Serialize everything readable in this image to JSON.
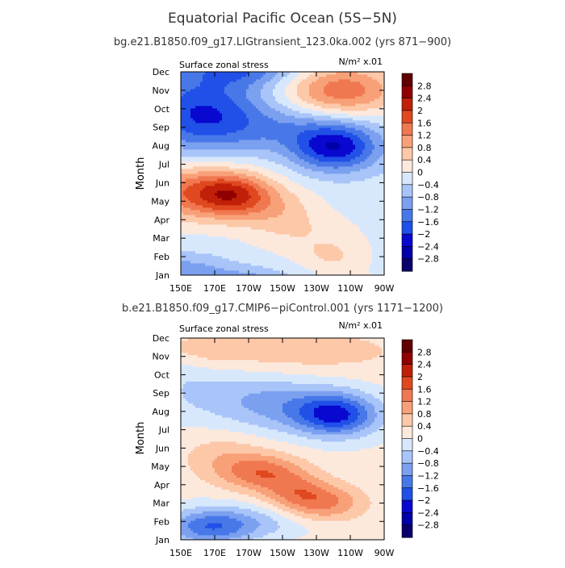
{
  "figure": {
    "title": "Equatorial Pacific Ocean (5S−5N)"
  },
  "chart_data": [
    {
      "type": "heatmap",
      "subtitle": "bg.e21.B1850.f09_g17.LIGtransient_123.0ka.002 (yrs 871−900)",
      "left_label": "Surface zonal stress",
      "units_label": "N/m² x.01",
      "ylabel": "Month",
      "xlabel": "",
      "x_ticks": [
        "150E",
        "170E",
        "170W",
        "150W",
        "130W",
        "110W",
        "90W"
      ],
      "y_ticks": [
        "Jan",
        "Feb",
        "Mar",
        "Apr",
        "May",
        "Jun",
        "Jul",
        "Aug",
        "Sep",
        "Oct",
        "Nov",
        "Dec"
      ],
      "xlim": [
        "150E",
        "90W"
      ],
      "levels": [
        -2.8,
        -2.4,
        -2,
        -1.6,
        -1.2,
        -0.8,
        -0.4,
        0,
        0.4,
        0.8,
        1.2,
        1.6,
        2,
        2.4,
        2.8
      ],
      "level_labels": [
        "2.8",
        "2.4",
        "2",
        "1.6",
        "1.2",
        "0.8",
        "0.4",
        "0",
        "−0.4",
        "−0.8",
        "−1.2",
        "−1.6",
        "−2",
        "−2.4",
        "−2.8"
      ],
      "features": [
        {
          "lon": 0.06,
          "month": 4.5,
          "amp": 1.6,
          "sx": 0.22,
          "sy": 1.1
        },
        {
          "lon": 0.26,
          "month": 4.35,
          "amp": 1.5,
          "sx": 0.13,
          "sy": 0.8
        },
        {
          "lon": 0.48,
          "month": 3.6,
          "amp": 0.6,
          "sx": 0.14,
          "sy": 0.9
        },
        {
          "lon": 0.62,
          "month": 2.2,
          "amp": 0.45,
          "sx": 0.2,
          "sy": 0.9
        },
        {
          "lon": 0.75,
          "month": 1.0,
          "amp": 0.5,
          "sx": 0.12,
          "sy": 0.6
        },
        {
          "lon": 0.79,
          "month": 10.0,
          "amp": 1.7,
          "sx": 0.2,
          "sy": 1.0
        },
        {
          "lon": 0.1,
          "month": 8.8,
          "amp": -1.8,
          "sx": 0.22,
          "sy": 1.5
        },
        {
          "lon": 0.55,
          "month": 8.0,
          "amp": -0.7,
          "sx": 0.25,
          "sy": 0.9
        },
        {
          "lon": 0.76,
          "month": 6.9,
          "amp": -2.0,
          "sx": 0.15,
          "sy": 0.9
        },
        {
          "lon": 0.3,
          "month": 11.2,
          "amp": -1.2,
          "sx": 0.2,
          "sy": 0.7
        },
        {
          "lon": 0.0,
          "month": 0.4,
          "amp": -0.6,
          "sx": 0.15,
          "sy": 0.6
        }
      ],
      "background": -0.2
    },
    {
      "type": "heatmap",
      "subtitle": "b.e21.B1850.f09_g17.CMIP6−piControl.001 (yrs 1171−1200)",
      "left_label": "Surface zonal stress",
      "units_label": "N/m² x.01",
      "ylabel": "Month",
      "xlabel": "",
      "x_ticks": [
        "150E",
        "170E",
        "170W",
        "150W",
        "130W",
        "110W",
        "90W"
      ],
      "y_ticks": [
        "Jan",
        "Feb",
        "Mar",
        "Apr",
        "May",
        "Jun",
        "Jul",
        "Aug",
        "Sep",
        "Oct",
        "Nov",
        "Dec"
      ],
      "xlim": [
        "150E",
        "90W"
      ],
      "levels": [
        -2.8,
        -2.4,
        -2,
        -1.6,
        -1.2,
        -0.8,
        -0.4,
        0,
        0.4,
        0.8,
        1.2,
        1.6,
        2,
        2.4,
        2.8
      ],
      "level_labels": [
        "2.8",
        "2.4",
        "2",
        "1.6",
        "1.2",
        "0.8",
        "0.4",
        "0",
        "−0.4",
        "−0.8",
        "−1.2",
        "−1.6",
        "−2",
        "−2.4",
        "−2.8"
      ],
      "features": [
        {
          "lon": 0.4,
          "month": 3.7,
          "amp": 1.3,
          "sx": 0.15,
          "sy": 0.7
        },
        {
          "lon": 0.68,
          "month": 2.0,
          "amp": 1.3,
          "sx": 0.15,
          "sy": 0.7
        },
        {
          "lon": 0.56,
          "month": 2.8,
          "amp": 0.7,
          "sx": 0.12,
          "sy": 0.6
        },
        {
          "lon": 0.2,
          "month": 4.6,
          "amp": 0.5,
          "sx": 0.15,
          "sy": 0.9
        },
        {
          "lon": 0.5,
          "month": 10.3,
          "amp": 0.55,
          "sx": 0.45,
          "sy": 0.9
        },
        {
          "lon": 0.1,
          "month": 10.5,
          "amp": 0.35,
          "sx": 0.15,
          "sy": 0.6
        },
        {
          "lon": 0.77,
          "month": 6.8,
          "amp": -1.9,
          "sx": 0.14,
          "sy": 0.8
        },
        {
          "lon": 0.55,
          "month": 7.3,
          "amp": -0.9,
          "sx": 0.22,
          "sy": 1.0
        },
        {
          "lon": 0.25,
          "month": 8.0,
          "amp": -0.5,
          "sx": 0.2,
          "sy": 1.2
        },
        {
          "lon": 0.14,
          "month": 0.7,
          "amp": -1.5,
          "sx": 0.15,
          "sy": 0.7
        },
        {
          "lon": 0.4,
          "month": 1.0,
          "amp": -0.6,
          "sx": 0.2,
          "sy": 0.7
        },
        {
          "lon": 0.02,
          "month": 9.0,
          "amp": -0.3,
          "sx": 0.1,
          "sy": 1.5
        }
      ],
      "background": 0.1
    }
  ],
  "colors": {
    "levels_fill": [
      "#08006b",
      "#0000a8",
      "#0808d0",
      "#2050e8",
      "#4878e8",
      "#7ca0f0",
      "#a8c4f8",
      "#d8e8fc",
      "#fde8dc",
      "#fcc8a8",
      "#f8a078",
      "#f07850",
      "#e04820",
      "#c02008",
      "#900000",
      "#600000"
    ]
  }
}
